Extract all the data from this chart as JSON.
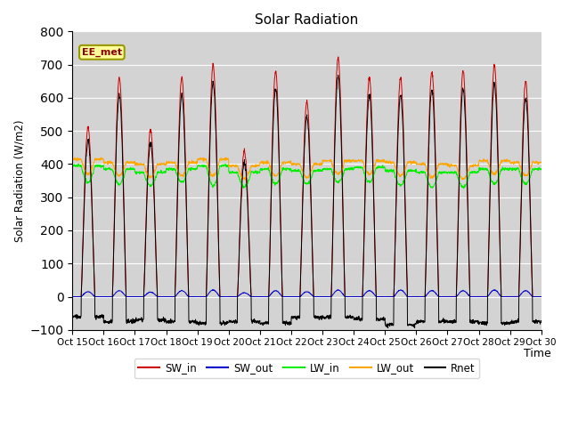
{
  "title": "Solar Radiation",
  "ylabel": "Solar Radiation (W/m2)",
  "xlabel": "Time",
  "xlim_days": [
    0,
    15
  ],
  "ylim": [
    -100,
    800
  ],
  "yticks": [
    -100,
    0,
    100,
    200,
    300,
    400,
    500,
    600,
    700,
    800
  ],
  "xtick_labels": [
    "Oct 15",
    "Oct 16",
    "Oct 17",
    "Oct 18",
    "Oct 19",
    "Oct 20",
    "Oct 21",
    "Oct 22",
    "Oct 23",
    "Oct 24",
    "Oct 25",
    "Oct 26",
    "Oct 27",
    "Oct 28",
    "Oct 29",
    "Oct 30"
  ],
  "colors": {
    "SW_in": "#CC0000",
    "SW_out": "#0000CC",
    "LW_in": "#00EE00",
    "LW_out": "#FFA500",
    "Rnet": "#000000"
  },
  "annotation_text": "EE_met",
  "background_color": "#d3d3d3",
  "n_days": 15,
  "n_points_per_day": 144,
  "SW_in_peaks": [
    510,
    660,
    505,
    660,
    700,
    440,
    680,
    590,
    720,
    660,
    660,
    680,
    680,
    700,
    650
  ],
  "SW_out_peaks": [
    15,
    18,
    14,
    18,
    20,
    12,
    18,
    15,
    20,
    18,
    20,
    18,
    18,
    20,
    18
  ],
  "LW_in_high": [
    395,
    385,
    375,
    385,
    395,
    375,
    385,
    380,
    385,
    390,
    380,
    375,
    375,
    385,
    385
  ],
  "LW_in_low": [
    345,
    340,
    335,
    345,
    335,
    330,
    340,
    340,
    345,
    345,
    335,
    330,
    330,
    340,
    340
  ],
  "LW_out_high": [
    415,
    405,
    400,
    405,
    415,
    395,
    405,
    400,
    410,
    410,
    405,
    400,
    395,
    410,
    405
  ],
  "LW_out_low": [
    370,
    365,
    360,
    365,
    365,
    355,
    365,
    360,
    370,
    370,
    365,
    360,
    355,
    370,
    365
  ],
  "Rnet_night": [
    -60,
    -75,
    -70,
    -75,
    -80,
    -75,
    -80,
    -62,
    -62,
    -68,
    -85,
    -75,
    -75,
    -80,
    -75
  ]
}
